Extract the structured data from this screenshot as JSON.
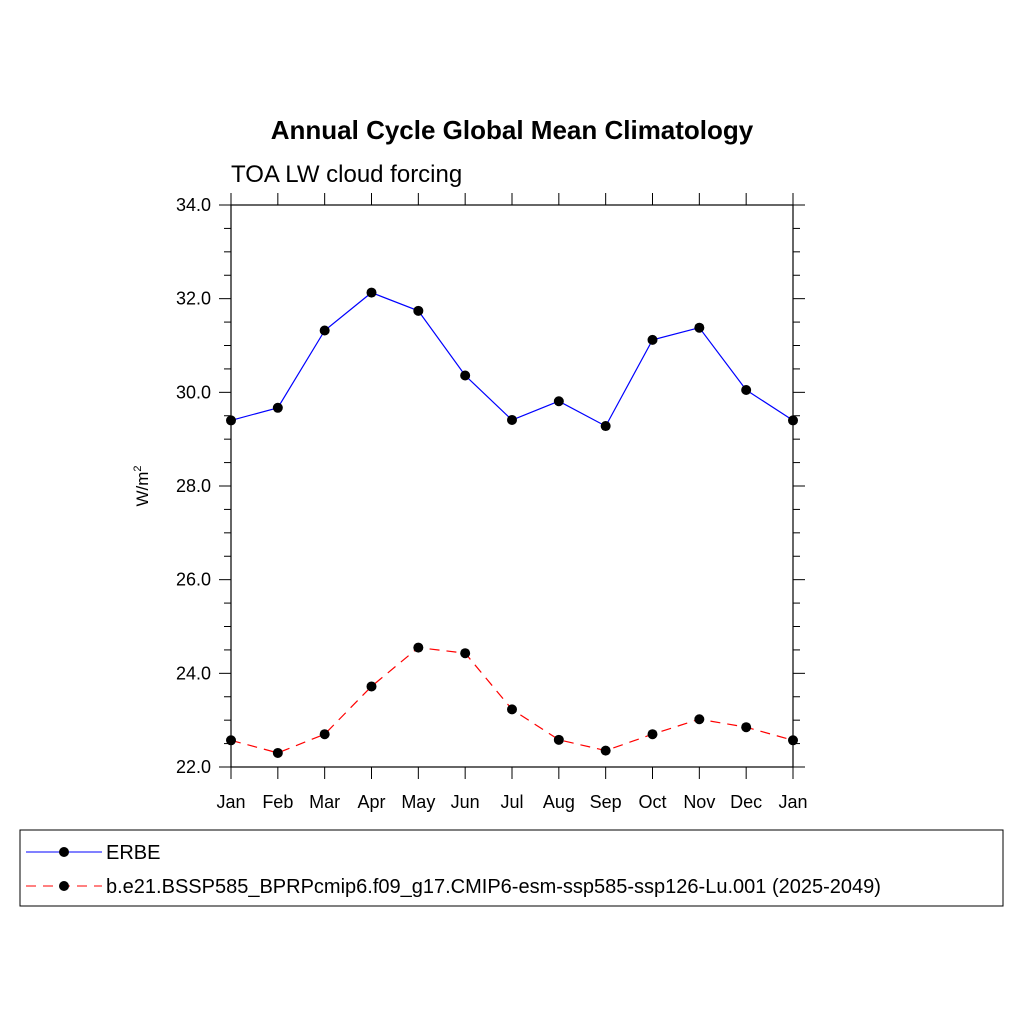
{
  "chart_data": {
    "type": "line",
    "title": "Annual Cycle Global Mean Climatology",
    "subtitle": "TOA LW cloud forcing",
    "ylabel": "W/m",
    "ylabel_superscript": "2",
    "ylim": [
      22.0,
      34.0
    ],
    "yticks": [
      "22.0",
      "24.0",
      "26.0",
      "28.0",
      "30.0",
      "32.0",
      "34.0"
    ],
    "categories": [
      "Jan",
      "Feb",
      "Mar",
      "Apr",
      "May",
      "Jun",
      "Jul",
      "Aug",
      "Sep",
      "Oct",
      "Nov",
      "Dec",
      "Jan"
    ],
    "series": [
      {
        "name": "ERBE",
        "color": "#0000ff",
        "dash": "solid",
        "values": [
          29.4,
          29.67,
          31.32,
          32.13,
          31.74,
          30.36,
          29.41,
          29.81,
          29.28,
          31.12,
          31.38,
          30.05,
          29.4
        ]
      },
      {
        "name": "b.e21.BSSP585_BPRPcmip6.f09_g17.CMIP6-esm-ssp585-ssp126-Lu.001 (2025-2049)",
        "color": "#ff0000",
        "dash": "dashed",
        "values": [
          22.57,
          22.3,
          22.7,
          23.72,
          24.55,
          24.43,
          23.23,
          22.58,
          22.35,
          22.7,
          23.02,
          22.85,
          22.57
        ]
      }
    ]
  }
}
